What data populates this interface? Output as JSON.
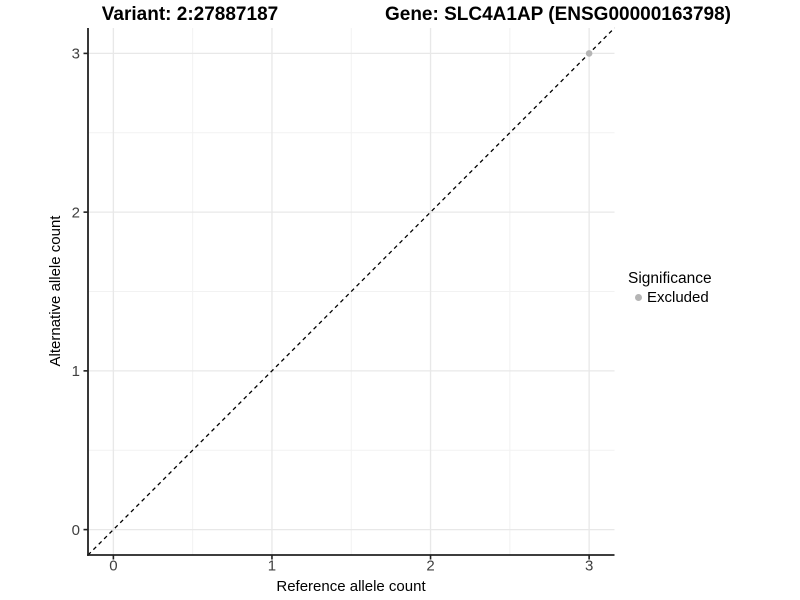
{
  "titles": {
    "variant": "Variant: 2:27887187",
    "gene": "Gene: SLC4A1AP (ENSG00000163798)"
  },
  "legend": {
    "title": "Significance",
    "items": [
      {
        "label": "Excluded",
        "color": "#b5b5b5"
      }
    ]
  },
  "colors": {
    "grid_major": "#e8e8e8",
    "grid_minor": "#f2f2f2",
    "axis_line": "#222222",
    "tick_label": "#404040",
    "reference_line": "#000000",
    "point": "#b5b5b5"
  },
  "chart_data": {
    "type": "scatter",
    "title": "",
    "xlabel": "Reference allele count",
    "ylabel": "Alternative allele count",
    "xlim": [
      -0.16,
      3.16
    ],
    "ylim": [
      -0.16,
      3.16
    ],
    "xticks": [
      0,
      1,
      2,
      3
    ],
    "yticks": [
      0,
      1,
      2,
      3
    ],
    "minor_xticks": [
      0.5,
      1.5,
      2.5
    ],
    "minor_yticks": [
      0.5,
      1.5,
      2.5
    ],
    "grid": true,
    "legend_position": "right",
    "series": [
      {
        "name": "Excluded",
        "color": "#b5b5b5",
        "points": [
          {
            "x": 3,
            "y": 3
          }
        ]
      }
    ],
    "reference_line": {
      "kind": "identity",
      "style": "dashed",
      "color": "#000000",
      "from": [
        -0.16,
        -0.16
      ],
      "to": [
        3.16,
        3.16
      ]
    }
  }
}
